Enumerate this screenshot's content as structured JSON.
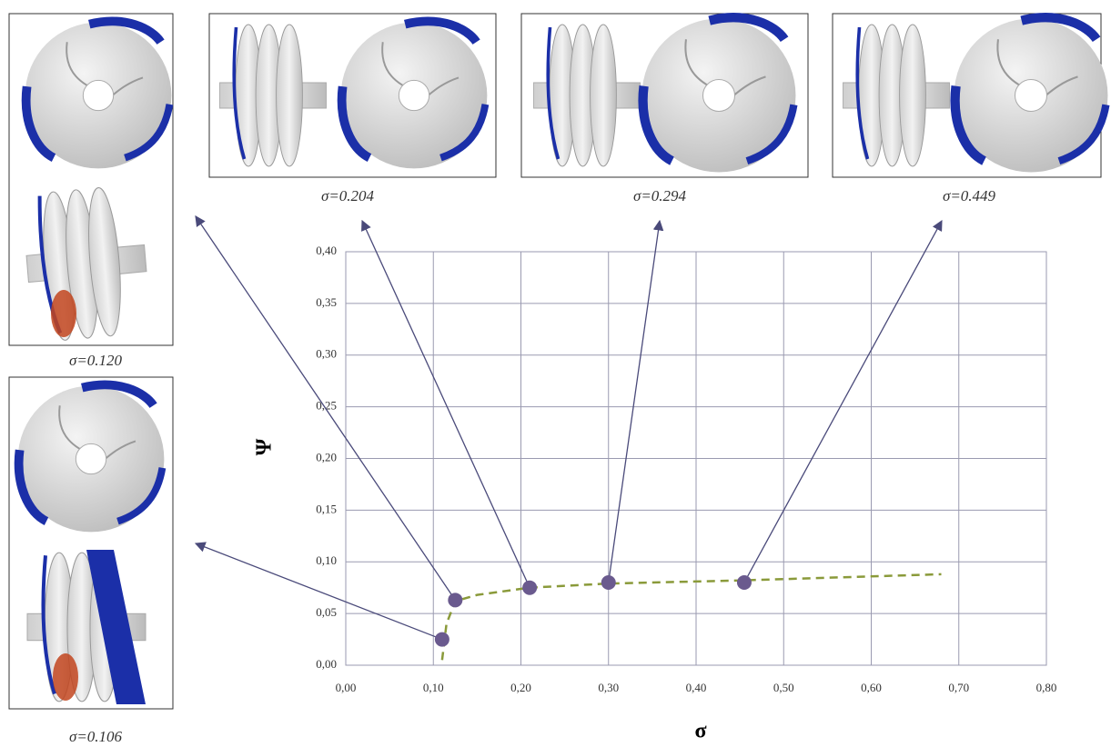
{
  "chart_data": {
    "type": "line",
    "x_label": "σ",
    "y_label": "Ψ",
    "xlim": [
      0,
      0.8
    ],
    "ylim": [
      0,
      0.4
    ],
    "xticks": [
      {
        "value": 0,
        "label": "0,00"
      },
      {
        "value": 0.1,
        "label": "0,10"
      },
      {
        "value": 0.2,
        "label": "0,20"
      },
      {
        "value": 0.3,
        "label": "0,30"
      },
      {
        "value": 0.4,
        "label": "0,40"
      },
      {
        "value": 0.5,
        "label": "0,50"
      },
      {
        "value": 0.6,
        "label": "0,60"
      },
      {
        "value": 0.7,
        "label": "0,70"
      },
      {
        "value": 0.8,
        "label": "0,80"
      }
    ],
    "yticks": [
      {
        "value": 0,
        "label": "0,00"
      },
      {
        "value": 0.05,
        "label": "0,05"
      },
      {
        "value": 0.1,
        "label": "0,10"
      },
      {
        "value": 0.15,
        "label": "0,15"
      },
      {
        "value": 0.2,
        "label": "0,20"
      },
      {
        "value": 0.25,
        "label": "0,25"
      },
      {
        "value": 0.3,
        "label": "0,30"
      },
      {
        "value": 0.35,
        "label": "0,35"
      },
      {
        "value": 0.4,
        "label": "0,40"
      }
    ],
    "grid": true,
    "series": [
      {
        "color": "#8a9a3a",
        "style": "dashed",
        "x": [
          0.11,
          0.115,
          0.125,
          0.15,
          0.21,
          0.3,
          0.45,
          0.68
        ],
        "values": [
          0.005,
          0.04,
          0.062,
          0.068,
          0.075,
          0.079,
          0.082,
          0.088
        ]
      },
      {
        "color": "#6a5a8e",
        "style": "markers",
        "x": [
          0.11,
          0.125,
          0.21,
          0.3,
          0.455
        ],
        "values": [
          0.025,
          0.063,
          0.075,
          0.08,
          0.08
        ]
      }
    ],
    "annotations": [
      "σ=0.106",
      "σ=0.120",
      "σ=0.204",
      "σ=0.294",
      "σ=0.449"
    ]
  }
}
